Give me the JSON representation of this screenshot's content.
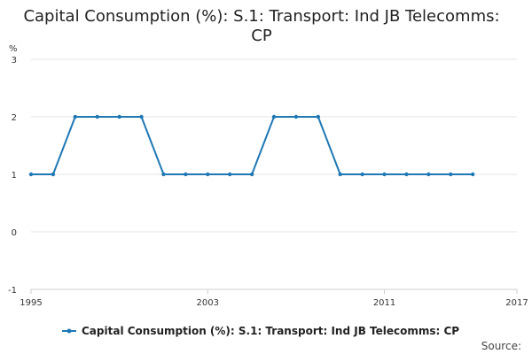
{
  "chart_data": {
    "type": "line",
    "title_lines": [
      "Capital Consumption (%): S.1: Transport: Ind JB Telecomms:",
      "CP"
    ],
    "y_unit": "%",
    "ylim": [
      -1,
      3
    ],
    "y_ticks": [
      -1,
      0,
      1,
      2,
      3
    ],
    "xlim": [
      1995,
      2017
    ],
    "x_tick_labels": [
      "1995",
      "2003",
      "2011",
      "2017"
    ],
    "grid": "horizontal",
    "legend_position": "bottom",
    "series": [
      {
        "name": "Capital Consumption (%): S.1: Transport: Ind JB Telecomms: CP",
        "color": "#1f78b4",
        "x": [
          1995,
          1996,
          1997,
          1998,
          1999,
          2000,
          2001,
          2002,
          2003,
          2004,
          2005,
          2006,
          2007,
          2008,
          2009,
          2010,
          2011,
          2012,
          2013,
          2014,
          2015
        ],
        "values": [
          1,
          1,
          2,
          2,
          2,
          2,
          1,
          1,
          1,
          1,
          1,
          2,
          2,
          2,
          1,
          1,
          1,
          1,
          1,
          1,
          1
        ]
      }
    ],
    "source_label": "Source:"
  }
}
